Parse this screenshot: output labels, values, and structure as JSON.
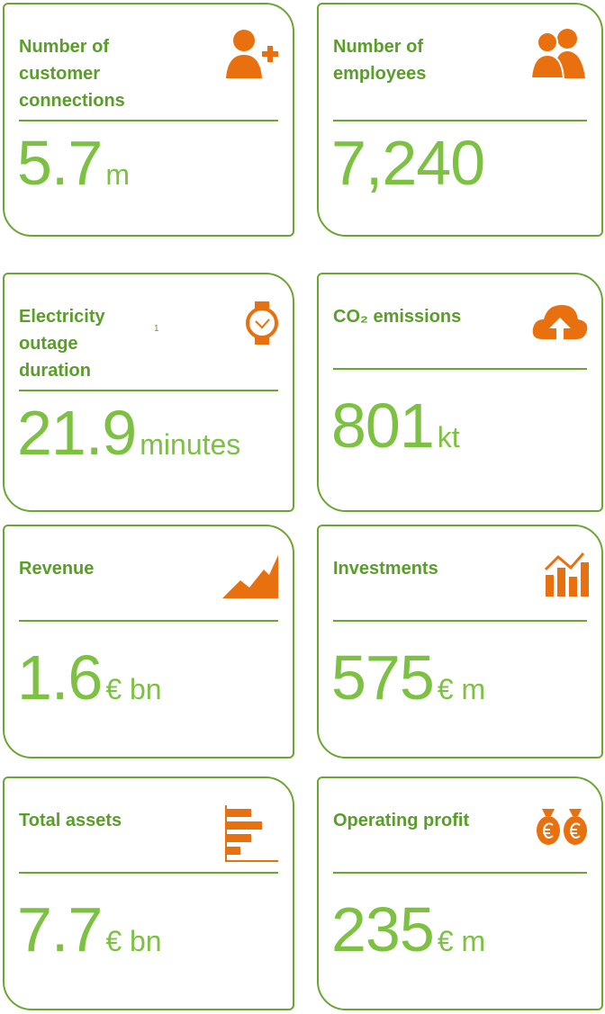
{
  "cards": [
    {
      "label": [
        "Number of",
        "customer",
        "connections"
      ],
      "value": "5.7",
      "unit": "m"
    },
    {
      "label": [
        "Number of",
        "employees"
      ],
      "value": "7,240"
    },
    {
      "label": [
        "Electricity",
        "outage",
        "duration"
      ],
      "footnote": "1",
      "value": "21.9",
      "unit": "minutes"
    },
    {
      "label": [
        "CO₂ emissions"
      ],
      "value": "801",
      "unit": "kt"
    },
    {
      "label": [
        "Revenue"
      ],
      "value": "1.6",
      "unit": "€ bn"
    },
    {
      "label": [
        "Investments"
      ],
      "value": "575",
      "unit": "€ m"
    },
    {
      "label": [
        "Total assets"
      ],
      "value": "7.7",
      "unit": "€ bn"
    },
    {
      "label": [
        "Operating profit"
      ],
      "value": "235",
      "unit": "€ m"
    }
  ]
}
